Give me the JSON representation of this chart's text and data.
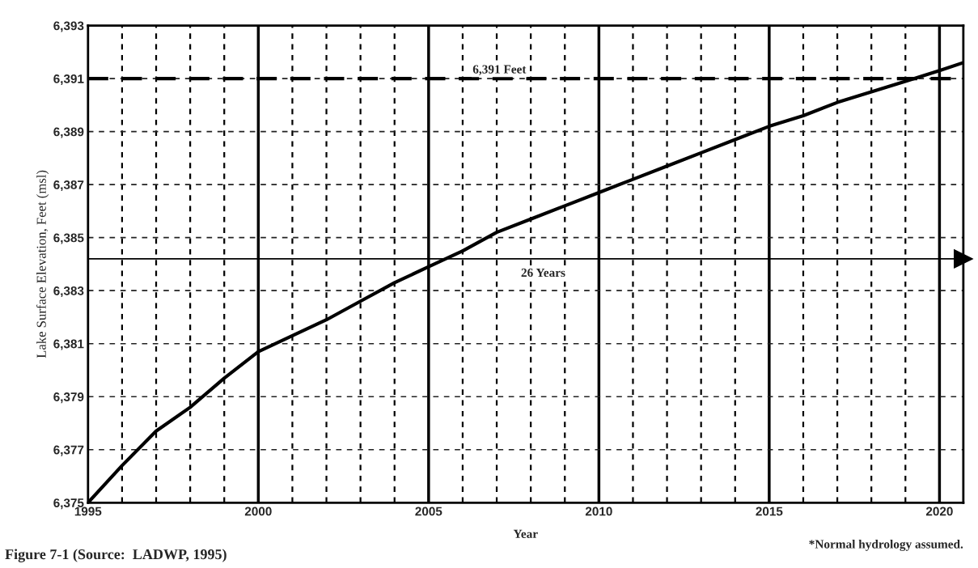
{
  "chart_data": {
    "type": "line",
    "xlabel": "Year",
    "ylabel": "Lake Surface Elevation, Feet (msl)",
    "x": [
      1995,
      1996,
      1997,
      1998,
      1999,
      2000,
      2001,
      2002,
      2003,
      2004,
      2005,
      2006,
      2007,
      2008,
      2009,
      2010,
      2011,
      2012,
      2013,
      2014,
      2015,
      2016,
      2017,
      2018,
      2019,
      2020,
      2020.7
    ],
    "series": [
      {
        "color": "#000000",
        "values": [
          6375,
          6376.4,
          6377.7,
          6378.6,
          6379.7,
          6380.7,
          6381.3,
          6381.9,
          6382.6,
          6383.3,
          6383.9,
          6384.5,
          6385.2,
          6385.7,
          6386.2,
          6386.7,
          6387.2,
          6387.7,
          6388.2,
          6388.7,
          6389.2,
          6389.6,
          6390.1,
          6390.5,
          6390.9,
          6391.3,
          6391.6
        ]
      }
    ],
    "xlim": [
      1995,
      2020.7
    ],
    "ylim": [
      6375,
      6393
    ],
    "xticks": [
      1995,
      {
        "value": 1996,
        "label": null
      },
      {
        "value": 1997,
        "label": null
      },
      {
        "value": 1998,
        "label": null
      },
      {
        "value": 1999,
        "label": null
      },
      2000,
      {
        "value": 2001,
        "label": null
      },
      {
        "value": 2002,
        "label": null
      },
      {
        "value": 2003,
        "label": null
      },
      {
        "value": 2004,
        "label": null
      },
      2005,
      {
        "value": 2006,
        "label": null
      },
      {
        "value": 2007,
        "label": null
      },
      {
        "value": 2008,
        "label": null
      },
      {
        "value": 2009,
        "label": null
      },
      2010,
      {
        "value": 2011,
        "label": null
      },
      {
        "value": 2012,
        "label": null
      },
      {
        "value": 2013,
        "label": null
      },
      {
        "value": 2014,
        "label": null
      },
      2015,
      {
        "value": 2016,
        "label": null
      },
      {
        "value": 2017,
        "label": null
      },
      {
        "value": 2018,
        "label": null
      },
      {
        "value": 2019,
        "label": null
      },
      2020
    ],
    "yticks": [
      {
        "value": 6375,
        "label": "6,375"
      },
      {
        "value": 6377,
        "label": "6,377"
      },
      {
        "value": 6379,
        "label": "6,379"
      },
      {
        "value": 6381,
        "label": "6,381"
      },
      {
        "value": 6383,
        "label": "6,383"
      },
      {
        "value": 6385,
        "label": "6,385"
      },
      {
        "value": 6387,
        "label": "6,387"
      },
      {
        "value": 6389,
        "label": "6,389"
      },
      {
        "value": 6391,
        "label": "6,391"
      },
      {
        "value": 6393,
        "label": "6,393"
      }
    ],
    "grid": true,
    "marker": "none",
    "line_style": "solid",
    "ref_lines": [
      {
        "axis": "y",
        "value": 6391,
        "label": "6,391 Feet",
        "line_style": "dashed",
        "color": "#000000"
      },
      {
        "axis": "y",
        "value": 6384.2,
        "label": "26 Years",
        "line_style": "solid",
        "color": "#000000"
      }
    ],
    "annotations": [
      "Figure 7-1 (Source:  LADWP, 1995)",
      "*Normal hydrology assumed."
    ]
  }
}
